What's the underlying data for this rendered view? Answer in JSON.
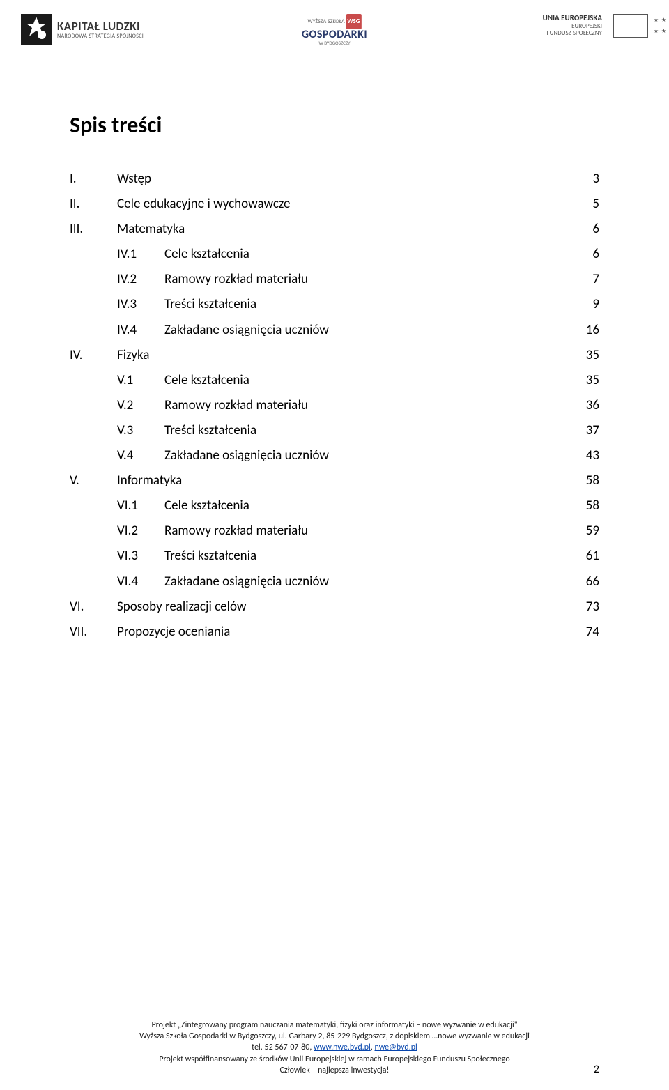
{
  "header": {
    "logo_left": {
      "big": "KAPITAŁ LUDZKI",
      "small": "NARODOWA STRATEGIA SPÓJNOŚCI"
    },
    "logo_center": {
      "top": "WYŻSZA SZKOŁA",
      "main": "GOSPODARKI",
      "bottom": "W BYDGOSZCZY",
      "badge": "WSG"
    },
    "logo_right": {
      "l1": "UNIA EUROPEJSKA",
      "l2": "EUROPEJSKI",
      "l3": "FUNDUSZ SPOŁECZNY"
    }
  },
  "title": "Spis treści",
  "toc": [
    {
      "num": "I.",
      "label": "Wstęp",
      "page": "3"
    },
    {
      "num": "II.",
      "label": "Cele edukacyjne i wychowawcze",
      "page": "5"
    },
    {
      "num": "III.",
      "label": "Matematyka",
      "page": "6"
    },
    {
      "num": "IV.1",
      "label": "Cele kształcenia",
      "page": "6",
      "sub": true
    },
    {
      "num": "IV.2",
      "label": "Ramowy rozkład materiału",
      "page": "7",
      "sub": true
    },
    {
      "num": "IV.3",
      "label": "Treści kształcenia",
      "page": "9",
      "sub": true
    },
    {
      "num": "IV.4",
      "label": "Zakładane osiągnięcia uczniów",
      "page": "16",
      "sub": true
    },
    {
      "num": "IV.",
      "label": "Fizyka",
      "page": "35"
    },
    {
      "num": "V.1",
      "label": "Cele kształcenia",
      "page": "35",
      "sub": true
    },
    {
      "num": "V.2",
      "label": "Ramowy rozkład materiału",
      "page": "36",
      "sub": true
    },
    {
      "num": "V.3",
      "label": "Treści kształcenia",
      "page": "37",
      "sub": true
    },
    {
      "num": "V.4",
      "label": "Zakładane osiągnięcia uczniów",
      "page": "43",
      "sub": true
    },
    {
      "num": "V.",
      "label": "Informatyka",
      "page": "58"
    },
    {
      "num": "VI.1",
      "label": "Cele kształcenia",
      "page": "58",
      "sub": true
    },
    {
      "num": "VI.2",
      "label": "Ramowy rozkład materiału",
      "page": "59",
      "sub": true
    },
    {
      "num": "VI.3",
      "label": "Treści kształcenia",
      "page": "61",
      "sub": true
    },
    {
      "num": "VI.4",
      "label": "Zakładane osiągnięcia uczniów",
      "page": "66",
      "sub": true
    },
    {
      "num": "VI.",
      "label": "Sposoby realizacji celów",
      "page": "73"
    },
    {
      "num": "VII.",
      "label": "Propozycje oceniania",
      "page": "74"
    }
  ],
  "footer": {
    "l1": "Projekt „Zintegrowany program nauczania matematyki, fizyki oraz informatyki – nowe wyzwanie w edukacji\"",
    "l2": "Wyższa Szkoła Gospodarki w Bydgoszczy, ul. Garbary 2, 85-229 Bydgoszcz, z dopiskiem …nowe wyzwanie w edukacji",
    "l3_pre": "tel. 52 567-07-80, ",
    "link1": "www.nwe.byd.pl",
    "l3_mid": ",  ",
    "link2": "nwe@byd.pl",
    "l4": "Projekt współfinansowany ze środków Unii Europejskiej w ramach Europejskiego Funduszu Społecznego",
    "l5": "Człowiek – najlepsza inwestycja!"
  },
  "page_number": "2",
  "colors": {
    "text": "#000000",
    "link": "#0645ad",
    "bg": "#ffffff"
  }
}
